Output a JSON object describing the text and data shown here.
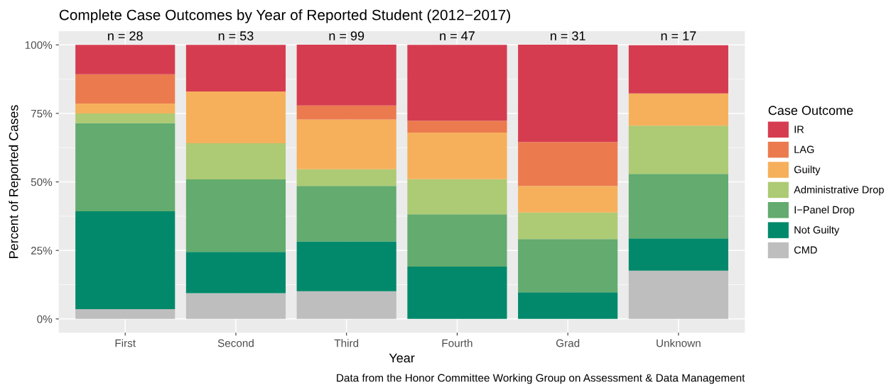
{
  "chart_data": {
    "type": "bar",
    "stacked": true,
    "title": "Complete Case Outcomes by Year of Reported Student (2012−2017)",
    "xlabel": "Year",
    "ylabel": "Percent of Reported Cases",
    "legend_title": "Case Outcome",
    "legend": "right",
    "grid": true,
    "categories": [
      "First",
      "Second",
      "Third",
      "Fourth",
      "Grad",
      "Unknown"
    ],
    "ylim": [
      -5,
      105
    ],
    "yticks": [
      {
        "value": 0,
        "label": "0%"
      },
      {
        "value": 25,
        "label": "25%"
      },
      {
        "value": 50,
        "label": "50%"
      },
      {
        "value": 75,
        "label": "75%"
      },
      {
        "value": 100,
        "label": "100%"
      }
    ],
    "series": [
      {
        "name": "CMD",
        "color": "#bebebe",
        "values": [
          3.6,
          9.4,
          10.1,
          0,
          0,
          17.6
        ]
      },
      {
        "name": "Not Guilty",
        "color": "#02896b",
        "values": [
          35.7,
          15.1,
          18.2,
          19.1,
          9.7,
          11.8
        ]
      },
      {
        "name": "I−Panel Drop",
        "color": "#63ab6e",
        "values": [
          32.1,
          26.4,
          20.2,
          19.1,
          19.4,
          23.5
        ]
      },
      {
        "name": "Administrative Drop",
        "color": "#adca74",
        "values": [
          3.6,
          13.2,
          6.1,
          12.8,
          9.7,
          17.6
        ]
      },
      {
        "name": "Guilty",
        "color": "#f6b05c",
        "values": [
          3.6,
          18.9,
          18.2,
          17.0,
          9.7,
          11.8
        ]
      },
      {
        "name": "LAG",
        "color": "#eb7b4f",
        "values": [
          10.7,
          0,
          5.1,
          4.3,
          16.1,
          0
        ]
      },
      {
        "name": "IR",
        "color": "#d63c50",
        "values": [
          10.7,
          17.0,
          22.2,
          27.7,
          35.5,
          17.6
        ]
      }
    ],
    "annotations": [
      {
        "text": "n = 28",
        "x": "First",
        "y": 100
      },
      {
        "text": "n = 53",
        "x": "Second",
        "y": 100
      },
      {
        "text": "n = 99",
        "x": "Third",
        "y": 100
      },
      {
        "text": "n = 47",
        "x": "Fourth",
        "y": 100
      },
      {
        "text": "n = 31",
        "x": "Grad",
        "y": 100
      },
      {
        "text": "n = 17",
        "x": "Unknown",
        "y": 100
      },
      "Data from the Honor Committee Working Group on Assessment & Data Management"
    ]
  }
}
